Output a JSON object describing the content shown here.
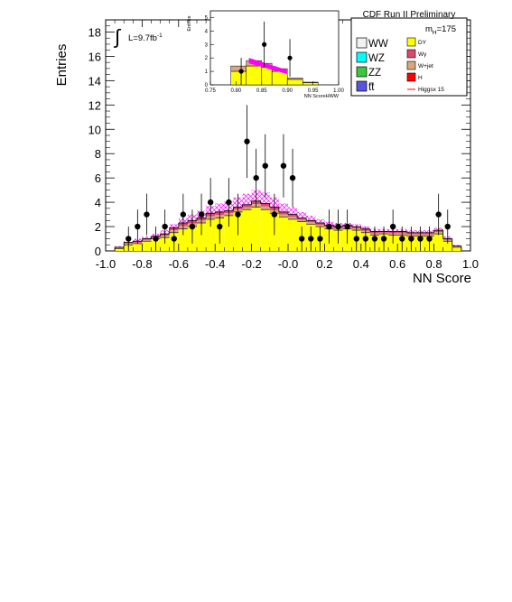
{
  "chart_data": [
    {
      "type": "bar",
      "subtype": "stacked histogram with data points",
      "title": "CDF Run II Preliminary",
      "xlabel": "NN Score",
      "ylabel": "Entries",
      "xlim": [
        -1.0,
        1.0
      ],
      "ylim": [
        0,
        19
      ],
      "x_ticks": [
        "-1.0",
        "-0.8",
        "-0.6",
        "-0.4",
        "-0.2",
        "-0.0",
        "0.2",
        "0.4",
        "0.6",
        "0.8",
        "1.0"
      ],
      "y_ticks": [
        "0",
        "2",
        "4",
        "6",
        "8",
        "10",
        "12",
        "14",
        "16",
        "18"
      ],
      "luminosity_label": "L=9.7fb",
      "luminosity_exp": "-1",
      "mass_label": "m",
      "mass_sub": "H",
      "mass_value": "=175",
      "bins": {
        "edges": [
          -0.95,
          -0.9,
          -0.85,
          -0.8,
          -0.75,
          -0.7,
          -0.65,
          -0.6,
          -0.55,
          -0.5,
          -0.45,
          -0.4,
          -0.35,
          -0.3,
          -0.25,
          -0.2,
          -0.15,
          -0.1,
          -0.05,
          0.0,
          0.05,
          0.1,
          0.15,
          0.2,
          0.25,
          0.3,
          0.35,
          0.4,
          0.45,
          0.5,
          0.55,
          0.6,
          0.65,
          0.7,
          0.75,
          0.8,
          0.85,
          0.9,
          0.95
        ],
        "dy_total": [
          0.2,
          0.5,
          0.6,
          0.8,
          1.0,
          1.1,
          1.5,
          1.8,
          2.0,
          2.3,
          2.6,
          2.7,
          2.9,
          3.2,
          3.4,
          3.6,
          3.4,
          3.1,
          2.8,
          2.6,
          2.4,
          2.2,
          2.0,
          1.8,
          1.7,
          1.8,
          1.7,
          1.5,
          1.3,
          1.4,
          1.3,
          1.3,
          1.2,
          1.2,
          1.2,
          1.4,
          0.8,
          0.3
        ],
        "stack_total": [
          0.3,
          0.7,
          0.8,
          1.0,
          1.2,
          1.4,
          1.9,
          2.3,
          2.5,
          2.7,
          3.1,
          3.2,
          3.3,
          3.6,
          3.8,
          4.1,
          3.9,
          3.6,
          3.2,
          3.0,
          2.7,
          2.5,
          2.3,
          2.1,
          2.0,
          2.1,
          2.0,
          1.8,
          1.6,
          1.6,
          1.6,
          1.6,
          1.5,
          1.5,
          1.5,
          1.7,
          1.0,
          0.4
        ],
        "higgs_x15_top": [
          0.4,
          0.8,
          1.0,
          1.2,
          1.4,
          1.7,
          2.2,
          2.7,
          3.0,
          3.3,
          3.7,
          3.9,
          4.1,
          4.4,
          4.7,
          5.0,
          4.8,
          4.4,
          3.9,
          3.6,
          3.2,
          2.9,
          2.6,
          2.4,
          2.3,
          2.3,
          2.2,
          2.0,
          1.8,
          1.8,
          1.8,
          1.8,
          1.7,
          1.7,
          1.7,
          1.9,
          1.2,
          0.5
        ]
      },
      "data_points": {
        "x": [
          -0.875,
          -0.825,
          -0.775,
          -0.725,
          -0.675,
          -0.625,
          -0.575,
          -0.525,
          -0.475,
          -0.425,
          -0.375,
          -0.325,
          -0.275,
          -0.225,
          -0.175,
          -0.125,
          -0.075,
          -0.025,
          0.025,
          0.075,
          0.125,
          0.175,
          0.225,
          0.275,
          0.325,
          0.375,
          0.425,
          0.475,
          0.525,
          0.575,
          0.625,
          0.675,
          0.725,
          0.775,
          0.825,
          0.875,
          0.925
        ],
        "y": [
          1,
          2,
          3,
          1,
          2,
          1,
          3,
          2,
          3,
          4,
          2,
          4,
          3,
          9,
          6,
          7,
          3,
          7,
          6,
          1,
          1,
          1,
          2,
          2,
          2,
          1,
          1,
          1,
          1,
          2,
          1,
          1,
          1,
          1,
          3,
          2,
          0
        ],
        "err": [
          1.0,
          1.4,
          1.7,
          1.0,
          1.4,
          1.0,
          1.7,
          1.4,
          1.7,
          2.0,
          1.4,
          2.0,
          1.7,
          3.0,
          2.4,
          2.6,
          1.7,
          2.6,
          2.4,
          1.0,
          1.0,
          1.0,
          1.4,
          1.4,
          1.4,
          1.0,
          1.0,
          1.0,
          1.0,
          1.4,
          1.0,
          1.0,
          1.0,
          1.0,
          1.7,
          1.4,
          0
        ]
      },
      "colors": {
        "DY": "#ffff00",
        "Wgamma": "#d84a6b",
        "Wjet": "#d8a77d",
        "H": "#ff0000",
        "WW": "#f2f2f2",
        "WZ": "#00ffff",
        "ZZ": "#3cc83c",
        "ttbar": "#5555dd",
        "higgs_hatch": "#ff00ff"
      }
    },
    {
      "type": "bar",
      "subtype": "inset zoom",
      "xlabel": "NN ScoreHWW",
      "ylabel": "Entries",
      "xlim": [
        0.75,
        1.0
      ],
      "ylim": [
        0,
        5.5
      ],
      "x_ticks": [
        "0.75",
        "0.80",
        "0.85",
        "0.90",
        "0.95",
        "1.00"
      ],
      "y_ticks": [
        "0",
        "1",
        "2",
        "3",
        "4",
        "5"
      ],
      "bins": {
        "edges": [
          0.79,
          0.82,
          0.85,
          0.87,
          0.9,
          0.93,
          0.96
        ],
        "stack_total": [
          1.4,
          1.8,
          1.6,
          1.2,
          0.5,
          0.2
        ],
        "dy_total": [
          1.0,
          1.4,
          1.3,
          1.0,
          0.4,
          0.15
        ]
      },
      "higgs_band": {
        "x": [
          0.825,
          0.9
        ],
        "y_low": [
          1.6,
          0.8
        ],
        "y_high": [
          2.0,
          1.1
        ]
      },
      "data_points": {
        "x": [
          0.81,
          0.855,
          0.905
        ],
        "y": [
          1,
          3,
          2
        ],
        "err": [
          1.0,
          1.7,
          1.4
        ]
      }
    }
  ],
  "legend": {
    "left": [
      {
        "label": "WW",
        "color": "#f2f2f2"
      },
      {
        "label": "WZ",
        "color": "#00ffff"
      },
      {
        "label": "ZZ",
        "color": "#3cc83c"
      },
      {
        "label": "tt",
        "color": "#5555dd"
      }
    ],
    "right": [
      {
        "label": "DY",
        "color": "#ffff00"
      },
      {
        "label": "Wγ",
        "color": "#d84a6b"
      },
      {
        "label": "W+jet",
        "color": "#d8a77d"
      },
      {
        "label": "H",
        "color": "#ff0000"
      },
      {
        "label": "Higgsx 15",
        "color": "#ff0000"
      }
    ]
  }
}
